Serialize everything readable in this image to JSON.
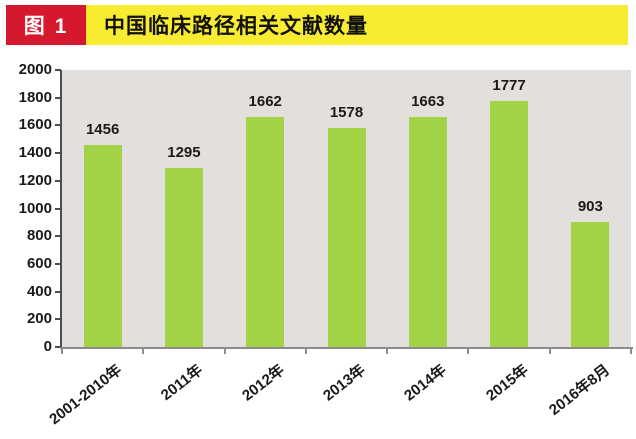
{
  "header": {
    "badge": "图 1",
    "title": "中国临床路径相关文献数量"
  },
  "chart_data": {
    "type": "bar",
    "title": "中国临床路径相关文献数量",
    "categories": [
      "2001-2010年",
      "2011年",
      "2012年",
      "2013年",
      "2014年",
      "2015年",
      "2016年8月"
    ],
    "values": [
      1456,
      1295,
      1662,
      1578,
      1663,
      1777,
      903
    ],
    "xlabel": "",
    "ylabel": "",
    "ylim": [
      0,
      2000
    ],
    "ytick_step": 200,
    "grid": false,
    "legend_position": "none",
    "data_labels": true
  },
  "colors": {
    "header_red": "#d6182e",
    "header_yellow": "#f7ec32",
    "bar_green": "#a2d245",
    "plot_bg": "#e3dfdc",
    "y_axis": "#4d4d4d",
    "x_axis": "#8c8c8c",
    "text": "#1a1a1a"
  }
}
